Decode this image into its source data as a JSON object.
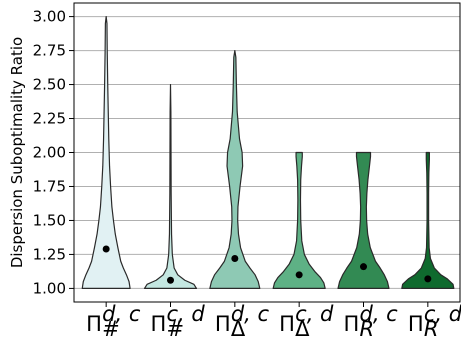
{
  "chart_data": {
    "type": "violin",
    "ylabel": "Dispersion Suboptimality Ratio",
    "ylim": [
      0.9,
      3.1
    ],
    "yticks": [
      "1.00",
      "1.25",
      "1.50",
      "1.75",
      "2.00",
      "2.25",
      "2.50",
      "2.75",
      "3.00"
    ],
    "ytick_values": [
      1.0,
      1.25,
      1.5,
      1.75,
      2.0,
      2.25,
      2.5,
      2.75,
      3.0
    ],
    "grid": "horizontal",
    "categories": [
      {
        "base": "Π",
        "sup": "d, c",
        "sub": "#"
      },
      {
        "base": "Π",
        "sup": "c, d",
        "sub": "#"
      },
      {
        "base": "Π",
        "sup": "d, c",
        "sub": "Δ"
      },
      {
        "base": "Π",
        "sup": "c, d",
        "sub": "Δ"
      },
      {
        "base": "Π",
        "sup": "d, c",
        "sub": "R"
      },
      {
        "base": "Π",
        "sup": "c, d",
        "sub": "R"
      }
    ],
    "series": [
      {
        "color": "#e1f1f3",
        "mean": 1.29,
        "min": 1.0,
        "max": 3.0,
        "density": [
          [
            1.0,
            0.92
          ],
          [
            1.05,
            0.88
          ],
          [
            1.1,
            0.78
          ],
          [
            1.15,
            0.66
          ],
          [
            1.2,
            0.56
          ],
          [
            1.3,
            0.45
          ],
          [
            1.4,
            0.35
          ],
          [
            1.5,
            0.28
          ],
          [
            1.6,
            0.22
          ],
          [
            1.75,
            0.17
          ],
          [
            1.9,
            0.13
          ],
          [
            2.1,
            0.1
          ],
          [
            2.3,
            0.08
          ],
          [
            2.5,
            0.06
          ],
          [
            2.75,
            0.04
          ],
          [
            2.95,
            0.03
          ],
          [
            3.0,
            0.0
          ]
        ]
      },
      {
        "color": "#c4e7e1",
        "mean": 1.06,
        "min": 1.0,
        "max": 2.5,
        "density": [
          [
            1.0,
            1.0
          ],
          [
            1.03,
            0.9
          ],
          [
            1.06,
            0.55
          ],
          [
            1.1,
            0.28
          ],
          [
            1.15,
            0.14
          ],
          [
            1.25,
            0.07
          ],
          [
            1.4,
            0.04
          ],
          [
            1.7,
            0.025
          ],
          [
            2.0,
            0.02
          ],
          [
            2.3,
            0.015
          ],
          [
            2.5,
            0.0
          ]
        ]
      },
      {
        "color": "#8ec9b4",
        "mean": 1.22,
        "min": 1.0,
        "max": 2.75,
        "density": [
          [
            1.0,
            0.96
          ],
          [
            1.05,
            0.9
          ],
          [
            1.1,
            0.78
          ],
          [
            1.15,
            0.58
          ],
          [
            1.2,
            0.4
          ],
          [
            1.3,
            0.22
          ],
          [
            1.4,
            0.14
          ],
          [
            1.5,
            0.11
          ],
          [
            1.6,
            0.12
          ],
          [
            1.75,
            0.2
          ],
          [
            1.9,
            0.3
          ],
          [
            2.0,
            0.28
          ],
          [
            2.1,
            0.18
          ],
          [
            2.3,
            0.09
          ],
          [
            2.5,
            0.06
          ],
          [
            2.7,
            0.04
          ],
          [
            2.75,
            0.0
          ]
        ]
      },
      {
        "color": "#5eb185",
        "mean": 1.1,
        "min": 1.0,
        "max": 2.0,
        "density": [
          [
            1.0,
            1.0
          ],
          [
            1.04,
            0.95
          ],
          [
            1.08,
            0.82
          ],
          [
            1.12,
            0.62
          ],
          [
            1.18,
            0.38
          ],
          [
            1.25,
            0.2
          ],
          [
            1.35,
            0.1
          ],
          [
            1.5,
            0.06
          ],
          [
            1.65,
            0.05
          ],
          [
            1.8,
            0.06
          ],
          [
            1.9,
            0.09
          ],
          [
            1.97,
            0.12
          ],
          [
            2.0,
            0.12
          ]
        ]
      },
      {
        "color": "#328a53",
        "mean": 1.16,
        "min": 1.0,
        "max": 2.0,
        "density": [
          [
            1.0,
            0.98
          ],
          [
            1.05,
            0.92
          ],
          [
            1.1,
            0.8
          ],
          [
            1.15,
            0.64
          ],
          [
            1.2,
            0.46
          ],
          [
            1.3,
            0.26
          ],
          [
            1.4,
            0.16
          ],
          [
            1.5,
            0.12
          ],
          [
            1.6,
            0.11
          ],
          [
            1.7,
            0.13
          ],
          [
            1.8,
            0.17
          ],
          [
            1.9,
            0.23
          ],
          [
            1.97,
            0.27
          ],
          [
            2.0,
            0.27
          ]
        ]
      },
      {
        "color": "#0f6a2e",
        "mean": 1.07,
        "min": 1.0,
        "max": 2.0,
        "density": [
          [
            1.0,
            1.0
          ],
          [
            1.03,
            0.97
          ],
          [
            1.07,
            0.75
          ],
          [
            1.1,
            0.5
          ],
          [
            1.15,
            0.25
          ],
          [
            1.22,
            0.1
          ],
          [
            1.3,
            0.05
          ],
          [
            1.5,
            0.03
          ],
          [
            1.7,
            0.03
          ],
          [
            1.85,
            0.04
          ],
          [
            1.95,
            0.06
          ],
          [
            2.0,
            0.06
          ]
        ]
      }
    ]
  }
}
